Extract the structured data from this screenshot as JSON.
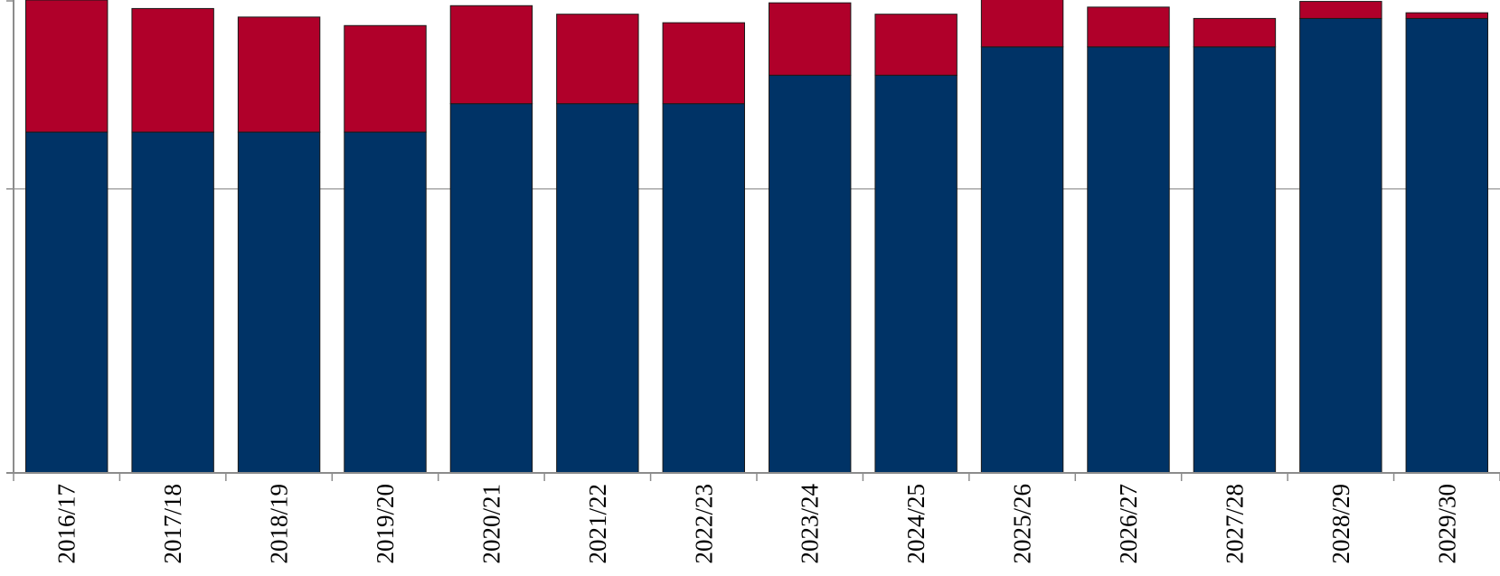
{
  "chart_data": {
    "type": "bar",
    "stacked": true,
    "title": "",
    "xlabel": "",
    "ylabel": "",
    "categories": [
      "2016/17",
      "2017/18",
      "2018/19",
      "2019/20",
      "2020/21",
      "2021/22",
      "2022/23",
      "2023/24",
      "2024/25",
      "2025/26",
      "2026/27",
      "2027/28",
      "2028/29",
      "2029/30"
    ],
    "series": [
      {
        "color": "#003366",
        "values": [
          120,
          120,
          120,
          120,
          130,
          130,
          130,
          140,
          140,
          150,
          150,
          150,
          160,
          160
        ]
      },
      {
        "color": "#b0002a",
        "values": [
          46.5,
          43.5,
          40.5,
          37.5,
          34.5,
          31.5,
          28.5,
          25.5,
          21.5,
          17.5,
          14,
          10,
          6,
          2
        ]
      }
    ],
    "ylim": [
      0,
      166.5
    ],
    "gridlines": [
      100
    ],
    "grid": true,
    "legend": "none",
    "y_tick_labels_shown": false
  }
}
